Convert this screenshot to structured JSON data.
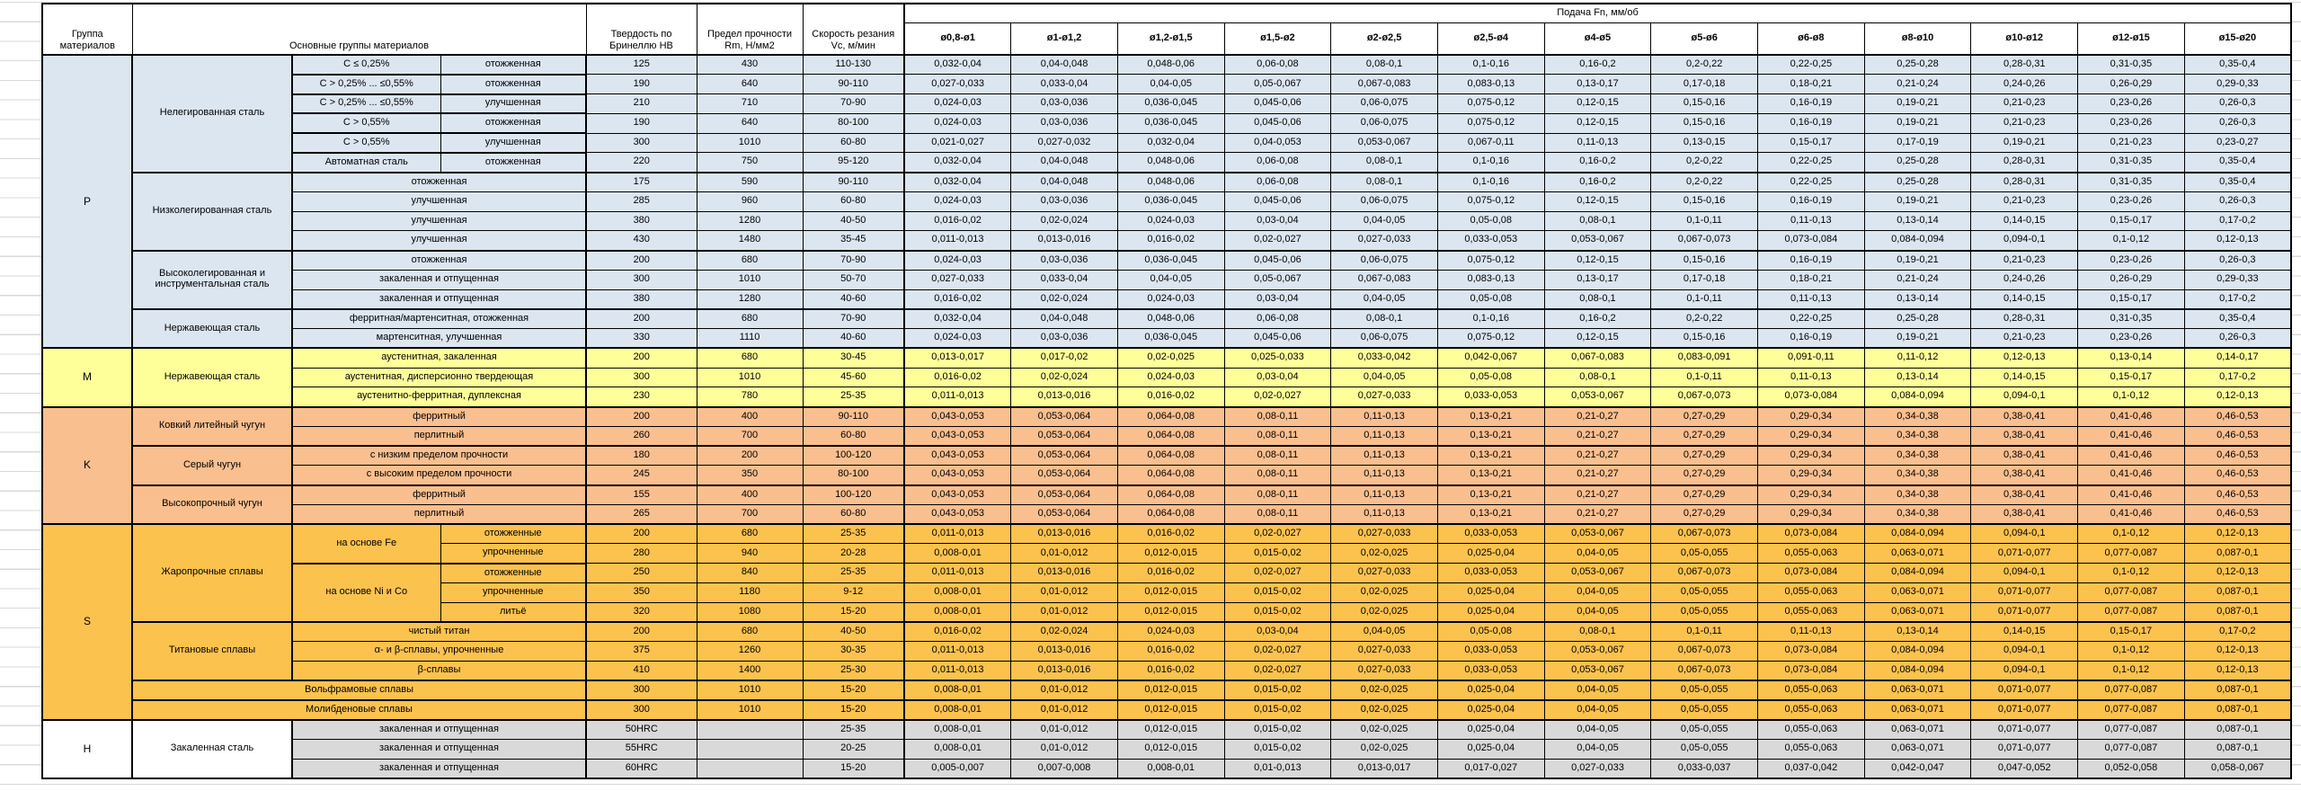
{
  "header": {
    "col_group": "Группа материалов",
    "col_main": "Основные группы материалов",
    "col_hb": "Твердость по Бринеллю HB",
    "col_rm": "Предел прочности Rm, Н/мм2",
    "col_vc": "Скорость резания Vc, м/мин",
    "col_feed": "Подача Fn, мм/об",
    "feed_cols": [
      "ø0,8-ø1",
      "ø1-ø1,2",
      "ø1,2-ø1,5",
      "ø1,5-ø2",
      "ø2-ø2,5",
      "ø2,5-ø4",
      "ø4-ø5",
      "ø5-ø6",
      "ø6-ø8",
      "ø8-ø10",
      "ø10-ø12",
      "ø12-ø15",
      "ø15-ø20"
    ]
  },
  "colors": {
    "group_p": "#DCE6F1",
    "group_m": "#FFFF99",
    "group_k": "#FABF8F",
    "group_s": "#FCC24E",
    "group_h_cells": "#D9D9D9",
    "border": "#000000",
    "gridline": "#D9D9D9"
  },
  "feed_patterns": {
    "A": [
      "0,032-0,04",
      "0,04-0,048",
      "0,048-0,06",
      "0,06-0,08",
      "0,08-0,1",
      "0,1-0,16",
      "0,16-0,2",
      "0,2-0,22",
      "0,22-0,25",
      "0,25-0,28",
      "0,28-0,31",
      "0,31-0,35",
      "0,35-0,4"
    ],
    "B": [
      "0,027-0,033",
      "0,033-0,04",
      "0,04-0,05",
      "0,05-0,067",
      "0,067-0,083",
      "0,083-0,13",
      "0,13-0,17",
      "0,17-0,18",
      "0,18-0,21",
      "0,21-0,24",
      "0,24-0,26",
      "0,26-0,29",
      "0,29-0,33"
    ],
    "C": [
      "0,024-0,03",
      "0,03-0,036",
      "0,036-0,045",
      "0,045-0,06",
      "0,06-0,075",
      "0,075-0,12",
      "0,12-0,15",
      "0,15-0,16",
      "0,16-0,19",
      "0,19-0,21",
      "0,21-0,23",
      "0,23-0,26",
      "0,26-0,3"
    ],
    "D": [
      "0,021-0,027",
      "0,027-0,032",
      "0,032-0,04",
      "0,04-0,053",
      "0,053-0,067",
      "0,067-0,11",
      "0,11-0,13",
      "0,13-0,15",
      "0,15-0,17",
      "0,17-0,19",
      "0,19-0,21",
      "0,21-0,23",
      "0,23-0,27"
    ],
    "E": [
      "0,016-0,02",
      "0,02-0,024",
      "0,024-0,03",
      "0,03-0,04",
      "0,04-0,05",
      "0,05-0,08",
      "0,08-0,1",
      "0,1-0,11",
      "0,11-0,13",
      "0,13-0,14",
      "0,14-0,15",
      "0,15-0,17",
      "0,17-0,2"
    ],
    "F": [
      "0,011-0,013",
      "0,013-0,016",
      "0,016-0,02",
      "0,02-0,027",
      "0,027-0,033",
      "0,033-0,053",
      "0,053-0,067",
      "0,067-0,073",
      "0,073-0,084",
      "0,084-0,094",
      "0,094-0,1",
      "0,1-0,12",
      "0,12-0,13"
    ],
    "G": [
      "0,013-0,017",
      "0,017-0,02",
      "0,02-0,025",
      "0,025-0,033",
      "0,033-0,042",
      "0,042-0,067",
      "0,067-0,083",
      "0,083-0,091",
      "0,091-0,11",
      "0,11-0,12",
      "0,12-0,13",
      "0,13-0,14",
      "0,14-0,17"
    ],
    "K": [
      "0,043-0,053",
      "0,053-0,064",
      "0,064-0,08",
      "0,08-0,11",
      "0,11-0,13",
      "0,13-0,21",
      "0,21-0,27",
      "0,27-0,29",
      "0,29-0,34",
      "0,34-0,38",
      "0,38-0,41",
      "0,41-0,46",
      "0,46-0,53"
    ],
    "H": [
      "0,008-0,01",
      "0,01-0,012",
      "0,012-0,015",
      "0,015-0,02",
      "0,02-0,025",
      "0,025-0,04",
      "0,04-0,05",
      "0,05-0,055",
      "0,055-0,063",
      "0,063-0,071",
      "0,071-0,077",
      "0,077-0,087",
      "0,087-0,1"
    ],
    "I": [
      "0,005-0,007",
      "0,007-0,008",
      "0,008-0,01",
      "0,01-0,013",
      "0,013-0,017",
      "0,017-0,027",
      "0,027-0,033",
      "0,033-0,037",
      "0,037-0,042",
      "0,042-0,047",
      "0,047-0,052",
      "0,052-0,058",
      "0,058-0,067"
    ]
  },
  "groups": [
    {
      "letter": "P",
      "bg_letter": "#DCE6F1",
      "bg_material": "#DCE6F1",
      "bg_cells": "#DCE6F1",
      "materials": [
        {
          "name": "Нелегированная сталь",
          "rows": [
            {
              "sub": "C ≤ 0,25%",
              "treat": "отожженная",
              "hb": "125",
              "rm": "430",
              "vc": "110-130",
              "feeds": "A"
            },
            {
              "sub": "C > 0,25% ... ≤0,55%",
              "treat": "отожженная",
              "hb": "190",
              "rm": "640",
              "vc": "90-110",
              "feeds": "B"
            },
            {
              "sub": "C > 0,25% ... ≤0,55%",
              "treat": "улучшенная",
              "hb": "210",
              "rm": "710",
              "vc": "70-90",
              "feeds": "C"
            },
            {
              "sub": "C > 0,55%",
              "treat": "отожженная",
              "hb": "190",
              "rm": "640",
              "vc": "80-100",
              "feeds": "C"
            },
            {
              "sub": "C > 0,55%",
              "treat": "улучшенная",
              "hb": "300",
              "rm": "1010",
              "vc": "60-80",
              "feeds": "D"
            },
            {
              "sub": "Автоматная сталь",
              "treat": "отожженная",
              "hb": "220",
              "rm": "750",
              "vc": "95-120",
              "feeds": "A"
            }
          ]
        },
        {
          "name": "Низколегированная сталь",
          "rows": [
            {
              "label": "отожженная",
              "hb": "175",
              "rm": "590",
              "vc": "90-110",
              "feeds": "A"
            },
            {
              "label": "улучшенная",
              "hb": "285",
              "rm": "960",
              "vc": "60-80",
              "feeds": "C"
            },
            {
              "label": "улучшенная",
              "hb": "380",
              "rm": "1280",
              "vc": "40-50",
              "feeds": "E"
            },
            {
              "label": "улучшенная",
              "hb": "430",
              "rm": "1480",
              "vc": "35-45",
              "feeds": "F"
            }
          ]
        },
        {
          "name": "Высоколегированная и инструментальная сталь",
          "rows": [
            {
              "label": "отожженная",
              "hb": "200",
              "rm": "680",
              "vc": "70-90",
              "feeds": "C"
            },
            {
              "label": "закаленная и отпущенная",
              "hb": "300",
              "rm": "1010",
              "vc": "50-70",
              "feeds": "B"
            },
            {
              "label": "закаленная и отпущенная",
              "hb": "380",
              "rm": "1280",
              "vc": "40-60",
              "feeds": "E"
            }
          ]
        },
        {
          "name": "Нержавеющая сталь",
          "rows": [
            {
              "label": "ферритная/мартенситная, отожженная",
              "hb": "200",
              "rm": "680",
              "vc": "70-90",
              "feeds": "A"
            },
            {
              "label": "мартенситная, улучшенная",
              "hb": "330",
              "rm": "1110",
              "vc": "40-60",
              "feeds": "C"
            }
          ]
        }
      ]
    },
    {
      "letter": "M",
      "bg_letter": "#FFFF99",
      "bg_material": "#FFFF99",
      "bg_cells": "#FFFF99",
      "materials": [
        {
          "name": "Нержавеющая сталь",
          "rows": [
            {
              "label": "аустенитная, закаленная",
              "hb": "200",
              "rm": "680",
              "vc": "30-45",
              "feeds": "G"
            },
            {
              "label": "аустенитная, дисперсионно твердеющая",
              "hb": "300",
              "rm": "1010",
              "vc": "45-60",
              "feeds": "E"
            },
            {
              "label": "аустенитно-ферритная, дуплексная",
              "hb": "230",
              "rm": "780",
              "vc": "25-35",
              "feeds": "F"
            }
          ]
        }
      ]
    },
    {
      "letter": "K",
      "bg_letter": "#FABF8F",
      "bg_material": "#FABF8F",
      "bg_cells": "#FABF8F",
      "materials": [
        {
          "name": "Ковкий литейный чугун",
          "rows": [
            {
              "label": "ферритный",
              "hb": "200",
              "rm": "400",
              "vc": "90-110",
              "feeds": "K"
            },
            {
              "label": "перлитный",
              "hb": "260",
              "rm": "700",
              "vc": "60-80",
              "feeds": "K"
            }
          ]
        },
        {
          "name": "Серый чугун",
          "rows": [
            {
              "label": "с низким пределом прочности",
              "hb": "180",
              "rm": "200",
              "vc": "100-120",
              "feeds": "K"
            },
            {
              "label": "с высоким пределом прочности",
              "hb": "245",
              "rm": "350",
              "vc": "80-100",
              "feeds": "K"
            }
          ]
        },
        {
          "name": "Высокопрочный чугун",
          "rows": [
            {
              "label": "ферритный",
              "hb": "155",
              "rm": "400",
              "vc": "100-120",
              "feeds": "K"
            },
            {
              "label": "перлитный",
              "hb": "265",
              "rm": "700",
              "vc": "60-80",
              "feeds": "K"
            }
          ]
        }
      ]
    },
    {
      "letter": "S",
      "bg_letter": "#FCC24E",
      "bg_material": "#FCC24E",
      "bg_cells": "#FCC24E",
      "materials": [
        {
          "name": "Жаропрочные сплавы",
          "rows": [
            {
              "sub": "на основе Fe",
              "sub_rows": 2,
              "treat": "отожженные",
              "hb": "200",
              "rm": "680",
              "vc": "25-35",
              "feeds": "F"
            },
            {
              "treat": "упрочненные",
              "hb": "280",
              "rm": "940",
              "vc": "20-28",
              "feeds": "H"
            },
            {
              "sub": "на основе Ni и Co",
              "sub_rows": 3,
              "treat": "отожженные",
              "hb": "250",
              "rm": "840",
              "vc": "25-35",
              "feeds": "F"
            },
            {
              "treat": "упрочненные",
              "hb": "350",
              "rm": "1180",
              "vc": "9-12",
              "feeds": "H"
            },
            {
              "treat": "литьё",
              "hb": "320",
              "rm": "1080",
              "vc": "15-20",
              "feeds": "H"
            }
          ]
        },
        {
          "name": "Титановые сплавы",
          "rows": [
            {
              "label": "чистый титан",
              "hb": "200",
              "rm": "680",
              "vc": "40-50",
              "feeds": "E"
            },
            {
              "label": "α- и β-сплавы, упрочненные",
              "hb": "375",
              "rm": "1260",
              "vc": "30-35",
              "feeds": "F"
            },
            {
              "label": "β-сплавы",
              "hb": "410",
              "rm": "1400",
              "vc": "25-30",
              "feeds": "F"
            }
          ]
        },
        {
          "name": "Вольфрамовые сплавы",
          "full_row": true,
          "rows": [
            {
              "hb": "300",
              "rm": "1010",
              "vc": "15-20",
              "feeds": "H"
            }
          ]
        },
        {
          "name": "Молибденовые сплавы",
          "full_row": true,
          "rows": [
            {
              "hb": "300",
              "rm": "1010",
              "vc": "15-20",
              "feeds": "H"
            }
          ]
        }
      ]
    },
    {
      "letter": "H",
      "bg_letter": "#FFFFFF",
      "bg_material": "#FFFFFF",
      "bg_cells": "#D9D9D9",
      "materials": [
        {
          "name": "Закаленная сталь",
          "rows": [
            {
              "label": "закаленная и отпущенная",
              "hb": "50HRC",
              "rm": "",
              "vc": "25-35",
              "feeds": "H"
            },
            {
              "label": "закаленная и отпущенная",
              "hb": "55HRC",
              "rm": "",
              "vc": "20-25",
              "feeds": "H"
            },
            {
              "label": "закаленная и отпущенная",
              "hb": "60HRC",
              "rm": "",
              "vc": "15-20",
              "feeds": "I"
            }
          ]
        }
      ]
    }
  ]
}
